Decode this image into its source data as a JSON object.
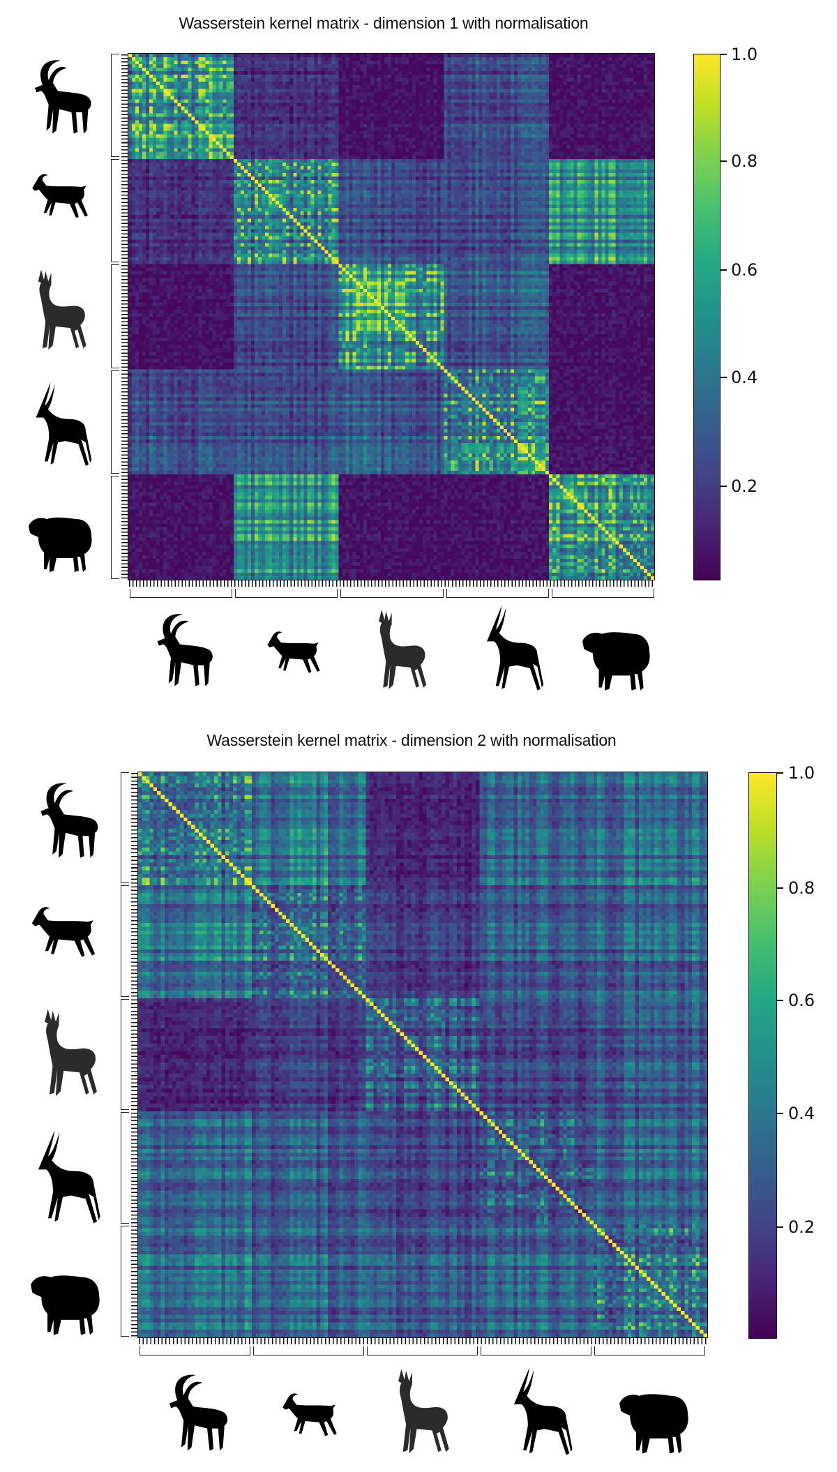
{
  "chart_data": [
    {
      "type": "heatmap",
      "title": "Wasserstein kernel matrix - dimension 1 with normalisation",
      "xlabel": "",
      "ylabel": "",
      "matrix_size": 150,
      "groups": [
        "ibex",
        "goat",
        "gazelle",
        "antelope",
        "sheep"
      ],
      "group_size": 30,
      "colormap": "viridis",
      "colorbar": {
        "ticks": [
          1.0,
          0.8,
          0.6,
          0.4,
          0.2
        ],
        "tick_labels": [
          "1.0",
          "0.8",
          "0.6",
          "0.4",
          "0.2"
        ],
        "range": [
          0.0,
          1.0
        ]
      },
      "diagonal_value": 1.0,
      "block_mean_similarity": [
        [
          0.7,
          0.15,
          0.05,
          0.25,
          0.05
        ],
        [
          0.15,
          0.55,
          0.25,
          0.25,
          0.55
        ],
        [
          0.05,
          0.25,
          0.7,
          0.3,
          0.05
        ],
        [
          0.25,
          0.25,
          0.3,
          0.55,
          0.05
        ],
        [
          0.05,
          0.55,
          0.05,
          0.05,
          0.65
        ]
      ],
      "grid": false,
      "legend_position": "right colorbar"
    },
    {
      "type": "heatmap",
      "title": "Wasserstein kernel matrix - dimension 2 with normalisation",
      "xlabel": "",
      "ylabel": "",
      "matrix_size": 150,
      "groups": [
        "ibex",
        "goat",
        "gazelle",
        "antelope",
        "sheep"
      ],
      "group_size": 30,
      "colormap": "viridis",
      "colorbar": {
        "ticks": [
          1.0,
          0.8,
          0.6,
          0.4,
          0.2
        ],
        "tick_labels": [
          "1.0",
          "0.8",
          "0.6",
          "0.4",
          "0.2"
        ],
        "range": [
          0.0,
          1.0
        ]
      },
      "diagonal_value": 1.0,
      "block_mean_similarity": [
        [
          0.5,
          0.45,
          0.12,
          0.4,
          0.4
        ],
        [
          0.45,
          0.4,
          0.2,
          0.35,
          0.35
        ],
        [
          0.12,
          0.2,
          0.35,
          0.25,
          0.3
        ],
        [
          0.4,
          0.35,
          0.25,
          0.4,
          0.38
        ],
        [
          0.4,
          0.35,
          0.3,
          0.38,
          0.42
        ]
      ],
      "grid": false,
      "legend_position": "right colorbar"
    }
  ],
  "panels": [
    {
      "title": "Wasserstein kernel matrix - dimension 1 with normalisation",
      "colorbar_labels": [
        "1.0",
        "0.8",
        "0.6",
        "0.4",
        "0.2"
      ]
    },
    {
      "title": "Wasserstein kernel matrix - dimension 2 with normalisation",
      "colorbar_labels": [
        "1.0",
        "0.8",
        "0.6",
        "0.4",
        "0.2"
      ]
    }
  ],
  "animals": [
    {
      "name": "ibex",
      "icon": "ibex-silhouette-icon",
      "color": "#000000"
    },
    {
      "name": "goat",
      "icon": "goat-silhouette-icon",
      "color": "#000000"
    },
    {
      "name": "gazelle",
      "icon": "gazelle-silhouette-icon",
      "color": "#2b2b2b"
    },
    {
      "name": "antelope",
      "icon": "antelope-silhouette-icon",
      "color": "#000000"
    },
    {
      "name": "sheep",
      "icon": "sheep-silhouette-icon",
      "color": "#000000"
    }
  ]
}
